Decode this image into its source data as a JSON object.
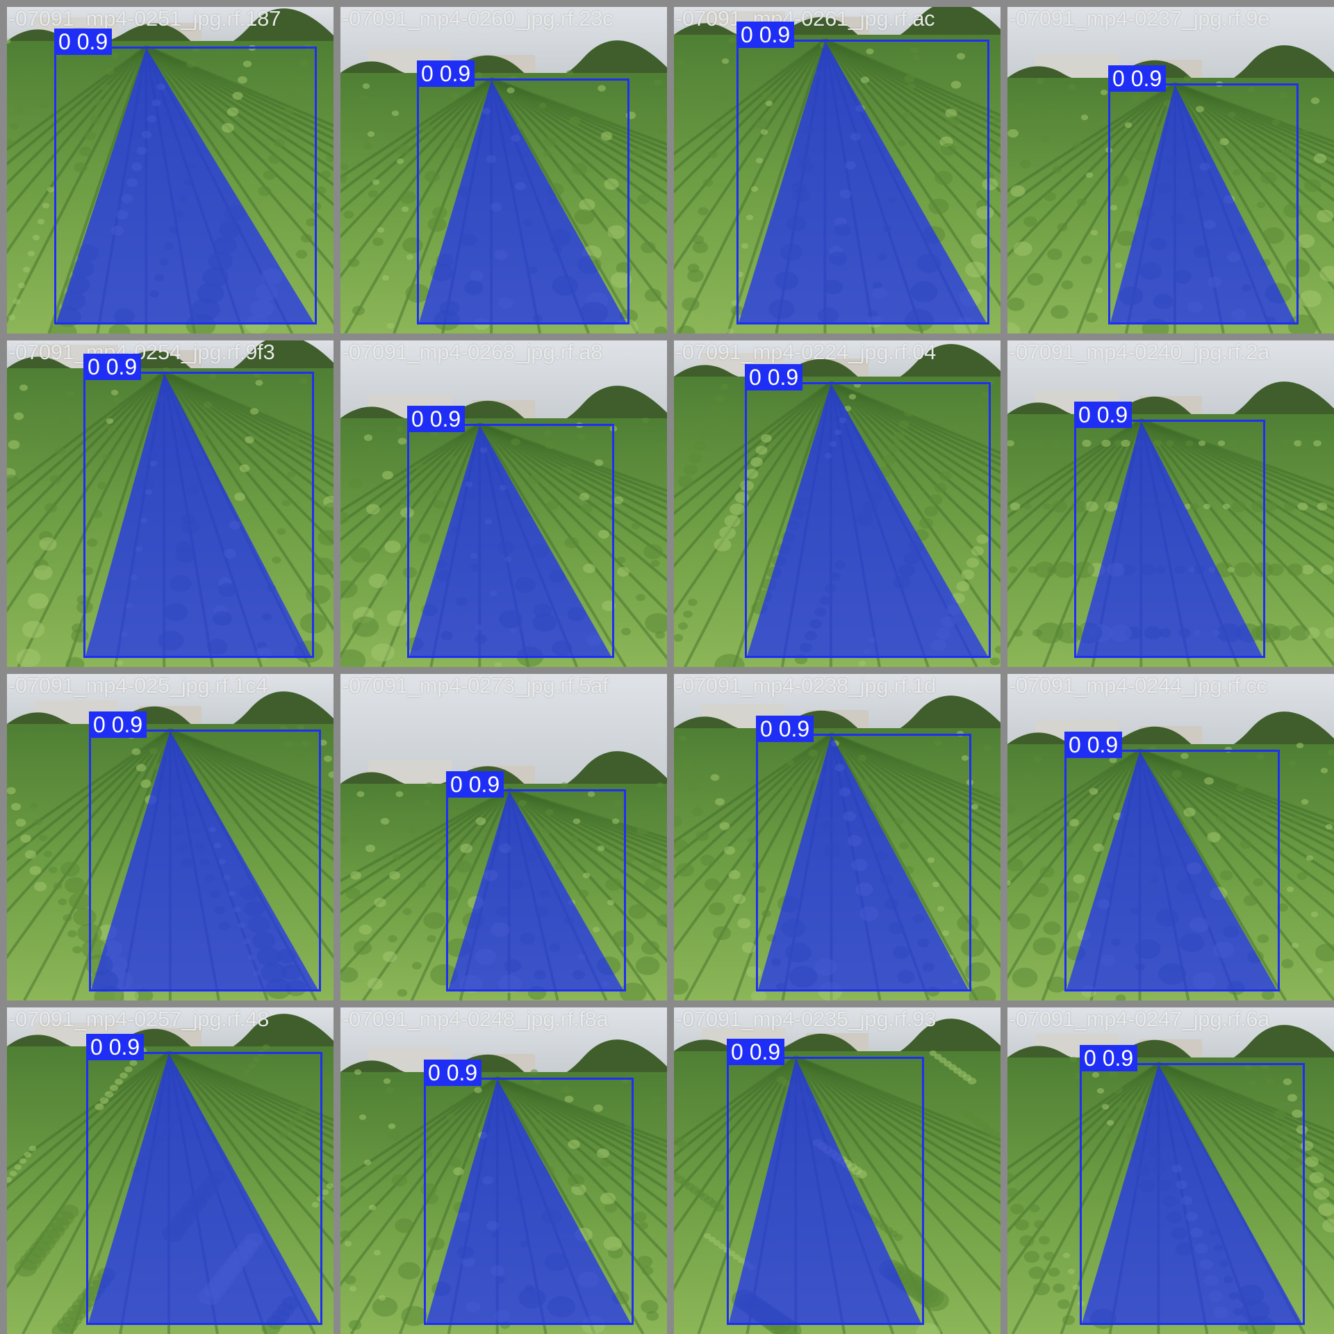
{
  "colors": {
    "background": "#8a8a8a",
    "mask": "#1f2ef5",
    "box": "#1f2ef5",
    "label_text": "#ffffff",
    "filename_text": "#e9e9e9"
  },
  "tiles": [
    {
      "filename": "-07091_mp4-0251_jpg.rf.187",
      "label": "0 0.9"
    },
    {
      "filename": "-07091_mp4-0260_jpg.rf.23c",
      "label": "0 0.9"
    },
    {
      "filename": "-07091_mp4-0261_jpg.rf.ac",
      "label": "0 0.9"
    },
    {
      "filename": "-07091_mp4-0237_jpg.rf.9e",
      "label": "0 0.9"
    },
    {
      "filename": "-07091_mp4-0254_jpg.rf.9f3",
      "label": "0 0.9"
    },
    {
      "filename": "-07091_mp4-0268_jpg.rf.a8",
      "label": "0 0.9"
    },
    {
      "filename": "-07091_mp4-0224_jpg.rf.04",
      "label": "0 0.9"
    },
    {
      "filename": "-07091_mp4-0240_jpg.rf.2a",
      "label": "0 0.9"
    },
    {
      "filename": "-07091_mp4-025_jpg.rf.1c4",
      "label": "0 0.9"
    },
    {
      "filename": "-07091_mp4-0273_jpg.rf.5af",
      "label": "0 0.9"
    },
    {
      "filename": "-07091_mp4-0238_jpg.rf.1d",
      "label": "0 0.9"
    },
    {
      "filename": "-07091_mp4-0244_jpg.rf.cc",
      "label": "0 0.9"
    },
    {
      "filename": "-07091_mp4-0257_jpg.rf.48",
      "label": "0 0.9"
    },
    {
      "filename": "-07091_mp4-0248_jpg.rf.f8a",
      "label": "0 0.9"
    },
    {
      "filename": "-07091_mp4-0235_jpg.rf.93",
      "label": "0 0.9"
    },
    {
      "filename": "-07091_mp4-0247_jpg.rf.6a",
      "label": "0 0.9"
    }
  ]
}
